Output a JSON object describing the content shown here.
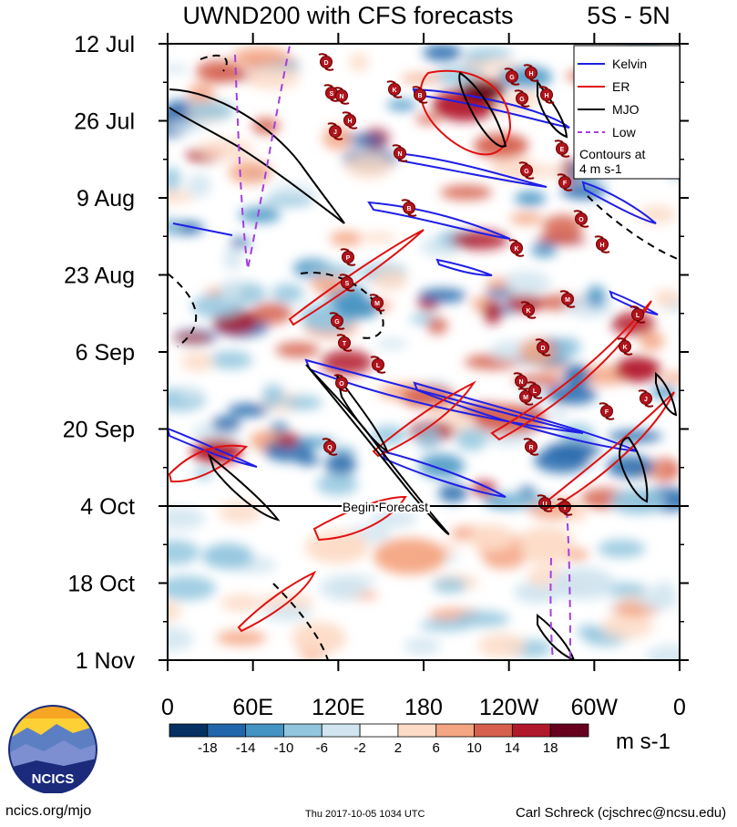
{
  "chart_data": {
    "type": "heatmap",
    "title": "UWND200 with CFS forecasts",
    "region_label": "5S - 5N",
    "x_axis": {
      "label": "",
      "ticks": [
        "0",
        "60E",
        "120E",
        "180",
        "120W",
        "60W",
        "0"
      ],
      "values": [
        0,
        60,
        120,
        180,
        240,
        300,
        360
      ],
      "range": [
        0,
        360
      ]
    },
    "y_axis": {
      "label": "",
      "ticks": [
        "12 Jul",
        "26 Jul",
        "9 Aug",
        "23 Aug",
        "6 Sep",
        "20 Sep",
        "4 Oct",
        "18 Oct",
        "1 Nov"
      ],
      "day_range": [
        0,
        112
      ],
      "tick_days": [
        0,
        14,
        28,
        42,
        56,
        70,
        84,
        98,
        112
      ]
    },
    "forecast_start_day": 84,
    "forecast_label": "Begin Forecast",
    "colorbar": {
      "unit": "m s-1",
      "tick_labels": [
        "-18",
        "-14",
        "-10",
        "-6",
        "-2",
        "2",
        "6",
        "10",
        "14",
        "18"
      ],
      "colors": [
        "#053061",
        "#2166ac",
        "#4393c3",
        "#92c5de",
        "#d1e5f0",
        "#ffffff",
        "#fddbc7",
        "#f4a582",
        "#d6604d",
        "#b2182b",
        "#67001f"
      ]
    },
    "legend": {
      "position": "top-right",
      "entries": [
        {
          "label": "Kelvin",
          "color": "#1f1fe6",
          "dash": false
        },
        {
          "label": "ER",
          "color": "#e01010",
          "dash": false
        },
        {
          "label": "MJO",
          "color": "#000000",
          "dash": false
        },
        {
          "label": "Low",
          "color": "#a33fe0",
          "dash": true
        }
      ],
      "note_line1": "Contours at",
      "note_line2": "4 m s-1"
    },
    "storm_markers": [
      "D",
      "G",
      "H",
      "S",
      "N",
      "K",
      "B",
      "G",
      "H",
      "J",
      "H",
      "N",
      "E",
      "F",
      "G",
      "O",
      "B",
      "K",
      "H",
      "P",
      "S",
      "M",
      "G",
      "T",
      "L",
      "K",
      "D",
      "O",
      "N",
      "M",
      "L",
      "F",
      "J",
      "K",
      "M",
      "L",
      "R",
      "Q",
      "U",
      "T"
    ]
  },
  "logo": {
    "text": "NCICS"
  },
  "footer": {
    "url": "ncics.org/mjo",
    "timestamp": "Thu 2017-10-05 1034 UTC",
    "author": "Carl Schreck (cjschrec@ncsu.edu)"
  }
}
